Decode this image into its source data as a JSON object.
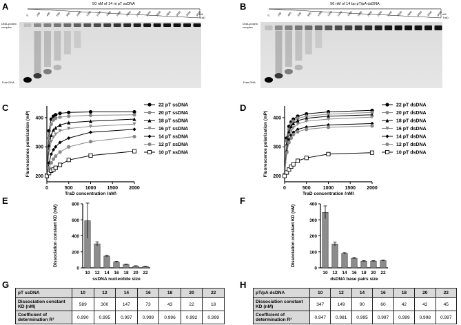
{
  "panels": {
    "A": {
      "letter": "A",
      "title": "50 nM of 14 nt pT ssDNA",
      "lanes": [
        "0",
        "200",
        "400",
        "600",
        "800",
        "1000",
        "1200",
        "1400",
        "1600",
        "1800",
        "2000",
        "2200",
        "2400",
        "2600",
        "2800",
        "3000",
        "3200",
        "3600"
      ],
      "unit": "nM\nTraD",
      "complex_label": "DNA-protein\ncomplex",
      "free_label": "Free DNA"
    },
    "B": {
      "letter": "B",
      "title": "50 nM of 14 bp pT/pA dsDNA",
      "lanes": [
        "0",
        "200",
        "400",
        "600",
        "800",
        "1000",
        "1200",
        "1400",
        "1600",
        "1800",
        "2000",
        "2200",
        "2400",
        "2600",
        "2800",
        "3000",
        "3200",
        "3600"
      ],
      "unit": "nM\nTraD",
      "complex_label": "DNA-protein\ncomplex",
      "free_label": "Free DNA"
    },
    "C": {
      "letter": "C"
    },
    "D": {
      "letter": "D"
    },
    "E": {
      "letter": "E"
    },
    "F": {
      "letter": "F"
    },
    "G": {
      "letter": "G"
    },
    "H": {
      "letter": "H"
    }
  },
  "chart_data": [
    {
      "id": "C",
      "type": "line",
      "ylabel": "Fluorescence polarization (mP)",
      "xlabel": "TraD concentration (nM)",
      "xlim": [
        0,
        2000
      ],
      "ylim": [
        180,
        440
      ],
      "xticks": [
        0,
        500,
        1000,
        1500,
        2000
      ],
      "yticks": [
        200,
        300,
        400
      ],
      "series": [
        {
          "name": "22 pT ssDNA",
          "color": "#000000",
          "marker": "circle",
          "x": [
            0,
            50,
            100,
            150,
            200,
            300,
            500,
            1000,
            2000
          ],
          "y": [
            205,
            355,
            395,
            405,
            410,
            415,
            418,
            420,
            420
          ]
        },
        {
          "name": "20 pT ssDNA",
          "color": "#888888",
          "marker": "circle",
          "x": [
            0,
            50,
            100,
            150,
            200,
            300,
            500,
            1000,
            2000
          ],
          "y": [
            205,
            330,
            378,
            392,
            398,
            402,
            405,
            408,
            410
          ]
        },
        {
          "name": "18 pT ssDNA",
          "color": "#000000",
          "marker": "triangle",
          "x": [
            0,
            50,
            100,
            150,
            200,
            300,
            500,
            1000,
            2000
          ],
          "y": [
            205,
            305,
            340,
            358,
            365,
            375,
            383,
            388,
            395
          ]
        },
        {
          "name": "16 pT ssDNA",
          "color": "#888888",
          "marker": "triangle-down",
          "x": [
            0,
            50,
            100,
            150,
            200,
            300,
            500,
            1000,
            2000
          ],
          "y": [
            205,
            285,
            318,
            333,
            343,
            355,
            363,
            370,
            378
          ]
        },
        {
          "name": "14 pT ssDNA",
          "color": "#000000",
          "marker": "diamond",
          "x": [
            0,
            50,
            100,
            150,
            200,
            300,
            500,
            1000,
            2000
          ],
          "y": [
            205,
            245,
            275,
            290,
            300,
            315,
            330,
            350,
            360
          ]
        },
        {
          "name": "12 pT ssDNA",
          "color": "#888888",
          "marker": "circle",
          "x": [
            0,
            50,
            100,
            150,
            200,
            300,
            500,
            1000,
            2000
          ],
          "y": [
            205,
            228,
            245,
            258,
            268,
            282,
            300,
            318,
            335
          ]
        },
        {
          "name": "10 pT ssDNA",
          "color": "#000000",
          "marker": "square-open",
          "x": [
            0,
            50,
            100,
            150,
            200,
            300,
            500,
            1000,
            2000
          ],
          "y": [
            200,
            210,
            218,
            222,
            228,
            238,
            255,
            270,
            285
          ]
        }
      ]
    },
    {
      "id": "D",
      "type": "line",
      "ylabel": "Fluorescence polarization (mP)",
      "xlabel": "TraD concentration (nM)",
      "xlim": [
        0,
        2000
      ],
      "ylim": [
        180,
        440
      ],
      "xticks": [
        0,
        500,
        1000,
        1500,
        2000
      ],
      "yticks": [
        200,
        300,
        400
      ],
      "series": [
        {
          "name": "22 pT dsDNA",
          "color": "#000000",
          "marker": "circle",
          "x": [
            0,
            50,
            100,
            150,
            200,
            300,
            500,
            1000,
            2000
          ],
          "y": [
            205,
            330,
            370,
            385,
            395,
            405,
            413,
            420,
            425
          ]
        },
        {
          "name": "20 pT dsDNA",
          "color": "#888888",
          "marker": "circle",
          "x": [
            0,
            50,
            100,
            150,
            200,
            300,
            500,
            1000,
            2000
          ],
          "y": [
            205,
            320,
            360,
            378,
            388,
            398,
            405,
            412,
            418
          ]
        },
        {
          "name": "18 pT dsDNA",
          "color": "#000000",
          "marker": "triangle",
          "x": [
            0,
            50,
            100,
            150,
            200,
            300,
            500,
            1000,
            2000
          ],
          "y": [
            205,
            310,
            352,
            370,
            380,
            390,
            398,
            405,
            410
          ]
        },
        {
          "name": "16 pT dsDNA",
          "color": "#888888",
          "marker": "triangle-down",
          "x": [
            0,
            50,
            100,
            150,
            200,
            300,
            500,
            1000,
            2000
          ],
          "y": [
            205,
            300,
            340,
            355,
            365,
            378,
            388,
            395,
            402
          ]
        },
        {
          "name": "14 pT dsDNA",
          "color": "#000000",
          "marker": "diamond",
          "x": [
            0,
            50,
            100,
            150,
            200,
            300,
            500,
            1000,
            2000
          ],
          "y": [
            205,
            285,
            325,
            340,
            350,
            360,
            368,
            375,
            380
          ]
        },
        {
          "name": "12 pT dsDNA",
          "color": "#888888",
          "marker": "circle",
          "x": [
            0,
            50,
            100,
            150,
            200,
            300,
            500,
            1000,
            2000
          ],
          "y": [
            205,
            280,
            315,
            330,
            342,
            352,
            360,
            367,
            372
          ]
        },
        {
          "name": "10 pT dsDNA",
          "color": "#000000",
          "marker": "square-open",
          "x": [
            0,
            50,
            100,
            150,
            200,
            300,
            500,
            1000,
            2000
          ],
          "y": [
            200,
            212,
            222,
            232,
            240,
            252,
            262,
            275,
            280
          ]
        }
      ]
    },
    {
      "id": "E",
      "type": "bar",
      "ylabel": "Dissociation constant KD (nM)",
      "xlabel": "ssDNA nucleotide size",
      "categories": [
        "10",
        "12",
        "14",
        "16",
        "18",
        "20",
        "22"
      ],
      "values": [
        589,
        300,
        147,
        73,
        43,
        22,
        18
      ],
      "errors": [
        220,
        25,
        12,
        8,
        5,
        4,
        4
      ],
      "ylim": [
        0,
        800
      ],
      "yticks": [
        0,
        200,
        400,
        600,
        800
      ]
    },
    {
      "id": "F",
      "type": "bar",
      "ylabel": "Dissociation constant KD (nM)",
      "xlabel": "dsDNA base pairs size",
      "categories": [
        "10",
        "12",
        "14",
        "16",
        "18",
        "20",
        "22"
      ],
      "values": [
        347,
        149,
        90,
        60,
        42,
        42,
        45
      ],
      "errors": [
        40,
        12,
        5,
        4,
        3,
        3,
        3
      ],
      "ylim": [
        0,
        400
      ],
      "yticks": [
        0,
        100,
        200,
        300,
        400
      ]
    }
  ],
  "tables": {
    "G": {
      "header": [
        "pT ssDNA",
        "10",
        "12",
        "14",
        "16",
        "18",
        "20",
        "22"
      ],
      "rows": [
        {
          "label": "Dissociation constant KD (nM)",
          "values": [
            "589",
            "300",
            "147",
            "73",
            "43",
            "22",
            "18"
          ]
        },
        {
          "label": "Coefficient of determination R²",
          "values": [
            "0.990",
            "0.995",
            "0.997",
            "0.999",
            "0.996",
            "0.992",
            "0.999"
          ]
        }
      ]
    },
    "H": {
      "header": [
        "pT/pA dsDNA",
        "10",
        "12",
        "14",
        "16",
        "18",
        "20",
        "22"
      ],
      "rows": [
        {
          "label": "Dissociation constant KD (nM)",
          "values": [
            "347",
            "149",
            "90",
            "60",
            "42",
            "42",
            "45"
          ]
        },
        {
          "label": "Coefficient of determination R²",
          "values": [
            "0.947",
            "0.981",
            "0.995",
            "0.997",
            "0.999",
            "0.998",
            "0.997"
          ]
        }
      ]
    }
  }
}
